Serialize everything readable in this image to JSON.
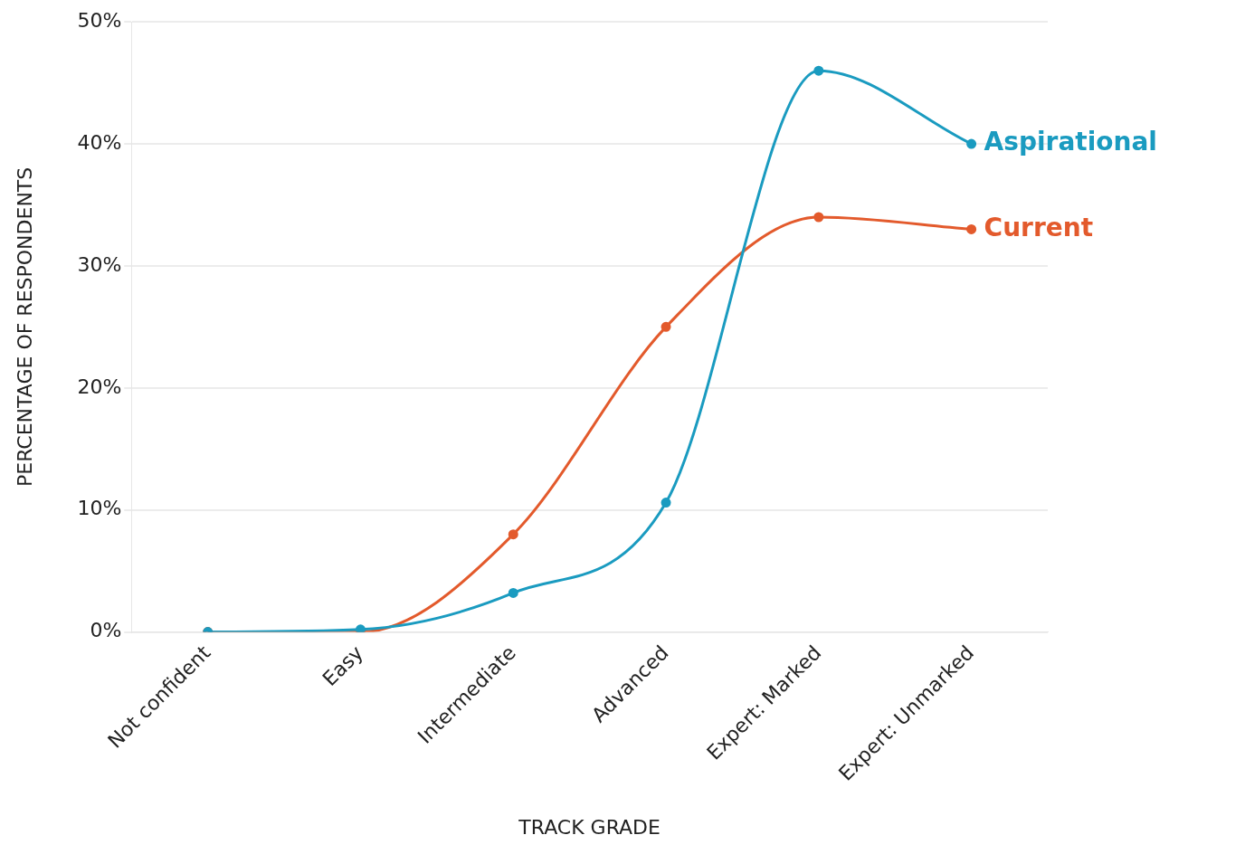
{
  "chart_data": {
    "type": "line",
    "xlabel": "TRACK GRADE",
    "ylabel": "PERCENTAGE OF RESPONDENTS",
    "categories": [
      "Not confident",
      "Easy",
      "Intermediate",
      "Advanced",
      "Expert: Marked",
      "Expert: Unmarked"
    ],
    "series": [
      {
        "name": "Aspirational",
        "color": "#1a9bc0",
        "values": [
          0,
          0.2,
          3.2,
          10.6,
          46,
          40
        ]
      },
      {
        "name": "Current",
        "color": "#e35a2c",
        "values": [
          0,
          0,
          8,
          25,
          34,
          33
        ]
      }
    ],
    "ylim": [
      0,
      50
    ],
    "yticks": [
      {
        "value": 0,
        "label": "0%"
      },
      {
        "value": 10,
        "label": "10%"
      },
      {
        "value": 20,
        "label": "20%"
      },
      {
        "value": 30,
        "label": "30%"
      },
      {
        "value": 40,
        "label": "40%"
      },
      {
        "value": 50,
        "label": "50%"
      }
    ],
    "grid": "y",
    "legend": false,
    "marker": "circle",
    "line_style": "solid"
  }
}
